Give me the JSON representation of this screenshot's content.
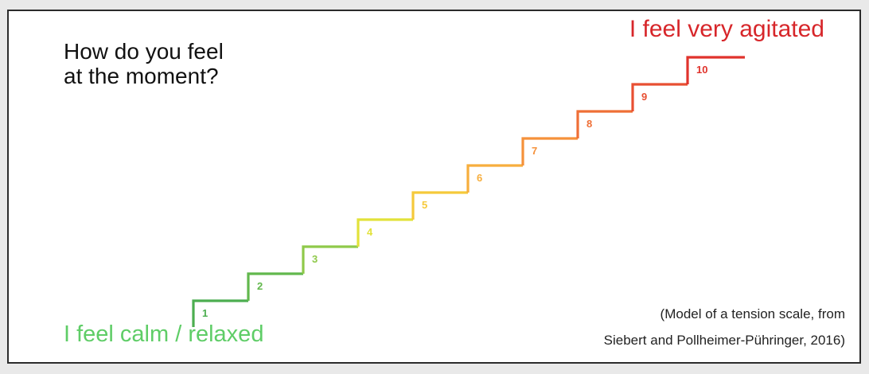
{
  "question": {
    "line1": "How do you feel",
    "line2": "at the moment?"
  },
  "scale": {
    "top_label": "I feel very agitated",
    "bottom_label": "I feel calm / relaxed",
    "top_color": "#d7262a",
    "bottom_color": "#5fcd67",
    "steps": [
      {
        "label": "1",
        "color": "#4cae50"
      },
      {
        "label": "2",
        "color": "#62b84d"
      },
      {
        "label": "3",
        "color": "#8fc94a"
      },
      {
        "label": "4",
        "color": "#e2e23a"
      },
      {
        "label": "5",
        "color": "#f5c93a"
      },
      {
        "label": "6",
        "color": "#f7ae3d"
      },
      {
        "label": "7",
        "color": "#f5913a"
      },
      {
        "label": "8",
        "color": "#ef6f36"
      },
      {
        "label": "9",
        "color": "#e84f32"
      },
      {
        "label": "10",
        "color": "#e0332c"
      }
    ]
  },
  "citation": {
    "line1": "(Model of a tension scale, from",
    "line2": "Siebert and Pollheimer-Pühringer, 2016)"
  }
}
